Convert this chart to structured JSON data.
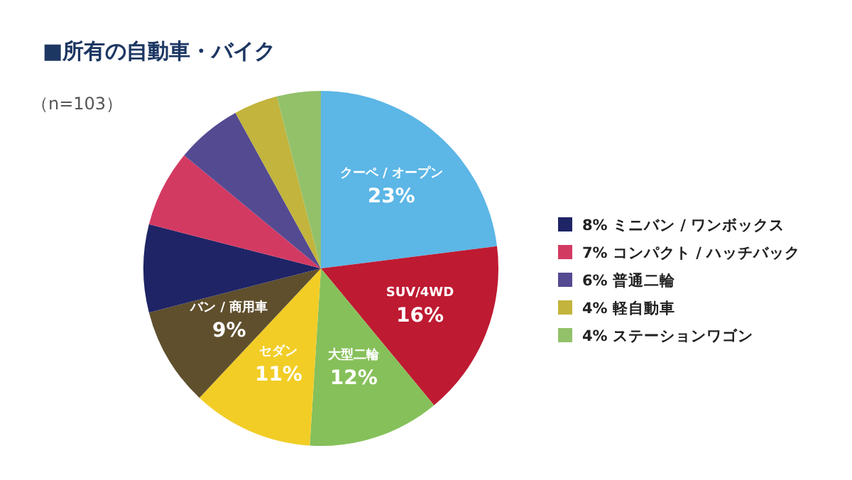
{
  "chart_data": {
    "type": "pie",
    "title": "■所有の自動車・バイク",
    "annotations": [
      "（n=103）"
    ],
    "categories": [
      "クーペ / オープン",
      "SUV/4WD",
      "大型二輪",
      "セダン",
      "バン / 商用車",
      "8%  ミニバン / ワンボックス",
      "7%  コンパクト / ハッチバック",
      "6%  普通二輪",
      "4%  軽自動車",
      "4%  ステーションワゴン"
    ],
    "values": [
      23,
      16,
      12,
      11,
      9,
      8,
      7,
      6,
      4,
      4
    ],
    "value_labels": [
      "23%",
      "16%",
      "12%",
      "11%",
      "9%",
      null,
      null,
      null,
      null,
      null
    ],
    "colors": [
      "#5cb6e6",
      "#be1a32",
      "#86c05a",
      "#f2cd26",
      "#5f4f2d",
      "#1f2466",
      "#d33a62",
      "#544a92",
      "#c2b43c",
      "#93c16a"
    ],
    "legend": "right"
  }
}
